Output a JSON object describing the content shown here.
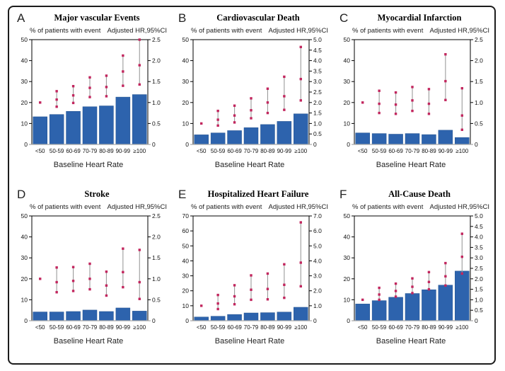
{
  "figure": {
    "left_header": "% of patients with event",
    "right_header": "Adjusted HR,95%CI",
    "x_axis_label": "Baseline Heart Rate",
    "x_categories": [
      "<50",
      "50-59",
      "60-69",
      "70-79",
      "80-89",
      "90-99",
      "≥100"
    ],
    "colors": {
      "bar": "#2d63ad",
      "bar_edge": "#24538f",
      "point": "#c2265e",
      "error_line": "#9b9b9b",
      "baseline": "#aaaaaa",
      "frame": "#000000"
    }
  },
  "chart_data": [
    {
      "panel": "A",
      "type": "bar",
      "title": "Major vascular Events",
      "categories": [
        "<50",
        "50-59",
        "60-69",
        "70-79",
        "80-89",
        "90-99",
        "≥100"
      ],
      "bar_values": [
        13.2,
        14.3,
        15.8,
        18.0,
        18.4,
        22.6,
        23.8
      ],
      "left_axis": {
        "label": "% of patients with event",
        "max": 50,
        "step": 10
      },
      "right_axis": {
        "label": "Adjusted HR,95%CI",
        "max": 2.5,
        "step": 0.5
      },
      "hr": [
        {
          "lo": null,
          "mid": 1.0,
          "hi": null,
          "ref": true
        },
        {
          "lo": 0.9,
          "mid": 1.07,
          "hi": 1.27
        },
        {
          "lo": 0.99,
          "mid": 1.17,
          "hi": 1.39
        },
        {
          "lo": 1.13,
          "mid": 1.35,
          "hi": 1.6
        },
        {
          "lo": 1.15,
          "mid": 1.37,
          "hi": 1.64
        },
        {
          "lo": 1.4,
          "mid": 1.74,
          "hi": 2.12
        },
        {
          "lo": 1.43,
          "mid": 1.89,
          "hi": 2.5
        }
      ]
    },
    {
      "panel": "B",
      "type": "bar",
      "title": "Cardiovascular Death",
      "categories": [
        "<50",
        "50-59",
        "60-69",
        "70-79",
        "80-89",
        "90-99",
        "≥100"
      ],
      "bar_values": [
        4.6,
        5.5,
        6.6,
        8.0,
        9.5,
        11.0,
        14.6
      ],
      "left_axis": {
        "label": "% of patients with event",
        "max": 50,
        "step": 10
      },
      "right_axis": {
        "label": "Adjusted HR,95%CI",
        "max": 5.0,
        "step": 0.5
      },
      "hr": [
        {
          "lo": null,
          "mid": 1.0,
          "hi": null,
          "ref": true
        },
        {
          "lo": 0.9,
          "mid": 1.18,
          "hi": 1.6
        },
        {
          "lo": 1.05,
          "mid": 1.38,
          "hi": 1.85
        },
        {
          "lo": 1.25,
          "mid": 1.63,
          "hi": 2.2
        },
        {
          "lo": 1.5,
          "mid": 2.0,
          "hi": 2.66
        },
        {
          "lo": 1.65,
          "mid": 2.3,
          "hi": 3.23
        },
        {
          "lo": 2.1,
          "mid": 3.12,
          "hi": 4.65
        }
      ]
    },
    {
      "panel": "C",
      "type": "bar",
      "title": "Myocardial Infarction",
      "categories": [
        "<50",
        "50-59",
        "60-69",
        "70-79",
        "80-89",
        "90-99",
        "≥100"
      ],
      "bar_values": [
        5.5,
        5.2,
        4.9,
        5.2,
        4.7,
        6.8,
        3.3
      ],
      "left_axis": {
        "label": "% of patients with event",
        "max": 50,
        "step": 10
      },
      "right_axis": {
        "label": "Adjusted HR,95%CI",
        "max": 2.5,
        "step": 0.5
      },
      "hr": [
        {
          "lo": null,
          "mid": 1.0,
          "hi": null,
          "ref": true
        },
        {
          "lo": 0.75,
          "mid": 0.97,
          "hi": 1.28
        },
        {
          "lo": 0.73,
          "mid": 0.95,
          "hi": 1.24
        },
        {
          "lo": 0.8,
          "mid": 1.05,
          "hi": 1.37
        },
        {
          "lo": 0.73,
          "mid": 0.97,
          "hi": 1.32
        },
        {
          "lo": 1.06,
          "mid": 1.51,
          "hi": 2.15
        },
        {
          "lo": 0.35,
          "mid": 0.69,
          "hi": 1.34
        }
      ]
    },
    {
      "panel": "D",
      "type": "bar",
      "title": "Stroke",
      "categories": [
        "<50",
        "50-59",
        "60-69",
        "70-79",
        "80-89",
        "90-99",
        "≥100"
      ],
      "bar_values": [
        4.2,
        4.2,
        4.4,
        5.1,
        4.4,
        6.1,
        4.6
      ],
      "left_axis": {
        "label": "% of patients with event",
        "max": 50,
        "step": 10
      },
      "right_axis": {
        "label": "Adjusted HR,95%CI",
        "max": 2.5,
        "step": 0.5
      },
      "hr": [
        {
          "lo": null,
          "mid": 1.0,
          "hi": null,
          "ref": true
        },
        {
          "lo": 0.68,
          "mid": 0.92,
          "hi": 1.27
        },
        {
          "lo": 0.71,
          "mid": 0.95,
          "hi": 1.28
        },
        {
          "lo": 0.75,
          "mid": 1.0,
          "hi": 1.36
        },
        {
          "lo": 0.6,
          "mid": 0.84,
          "hi": 1.17
        },
        {
          "lo": 0.8,
          "mid": 1.16,
          "hi": 1.72
        },
        {
          "lo": 0.52,
          "mid": 0.92,
          "hi": 1.69
        }
      ]
    },
    {
      "panel": "E",
      "type": "bar",
      "title": "Hospitalized Heart Failure",
      "categories": [
        "<50",
        "50-59",
        "60-69",
        "70-79",
        "80-89",
        "90-99",
        "≥100"
      ],
      "bar_values": [
        2.5,
        3.0,
        4.2,
        5.2,
        5.4,
        5.8,
        9.0
      ],
      "left_axis": {
        "label": "% of patients with event",
        "max": 70,
        "step": 10
      },
      "right_axis": {
        "label": "Adjusted HR,95%CI",
        "max": 7.0,
        "step": 1.0
      },
      "hr": [
        {
          "lo": null,
          "mid": 1.0,
          "hi": null,
          "ref": true
        },
        {
          "lo": 0.78,
          "mid": 1.15,
          "hi": 1.72
        },
        {
          "lo": 1.1,
          "mid": 1.63,
          "hi": 2.37
        },
        {
          "lo": 1.4,
          "mid": 2.07,
          "hi": 3.03
        },
        {
          "lo": 1.43,
          "mid": 2.12,
          "hi": 3.15
        },
        {
          "lo": 1.53,
          "mid": 2.4,
          "hi": 3.77
        },
        {
          "lo": 2.3,
          "mid": 3.88,
          "hi": 6.57
        }
      ]
    },
    {
      "panel": "F",
      "type": "bar",
      "title": "All-Cause Death",
      "categories": [
        "<50",
        "50-59",
        "60-69",
        "70-79",
        "80-89",
        "90-99",
        "≥100"
      ],
      "bar_values": [
        8.0,
        9.6,
        11.2,
        13.0,
        14.8,
        17.0,
        23.7
      ],
      "left_axis": {
        "label": "% of patients with event",
        "max": 50,
        "step": 10
      },
      "right_axis": {
        "label": "Adjusted HR,95%CI",
        "max": 5.0,
        "step": 0.5
      },
      "hr": [
        {
          "lo": null,
          "mid": 1.0,
          "hi": null,
          "ref": true
        },
        {
          "lo": 1.0,
          "mid": 1.25,
          "hi": 1.57
        },
        {
          "lo": 1.15,
          "mid": 1.42,
          "hi": 1.77
        },
        {
          "lo": 1.32,
          "mid": 1.62,
          "hi": 2.02
        },
        {
          "lo": 1.5,
          "mid": 1.85,
          "hi": 2.32
        },
        {
          "lo": 1.68,
          "mid": 2.12,
          "hi": 2.75
        },
        {
          "lo": 2.25,
          "mid": 3.05,
          "hi": 4.15
        }
      ]
    }
  ]
}
